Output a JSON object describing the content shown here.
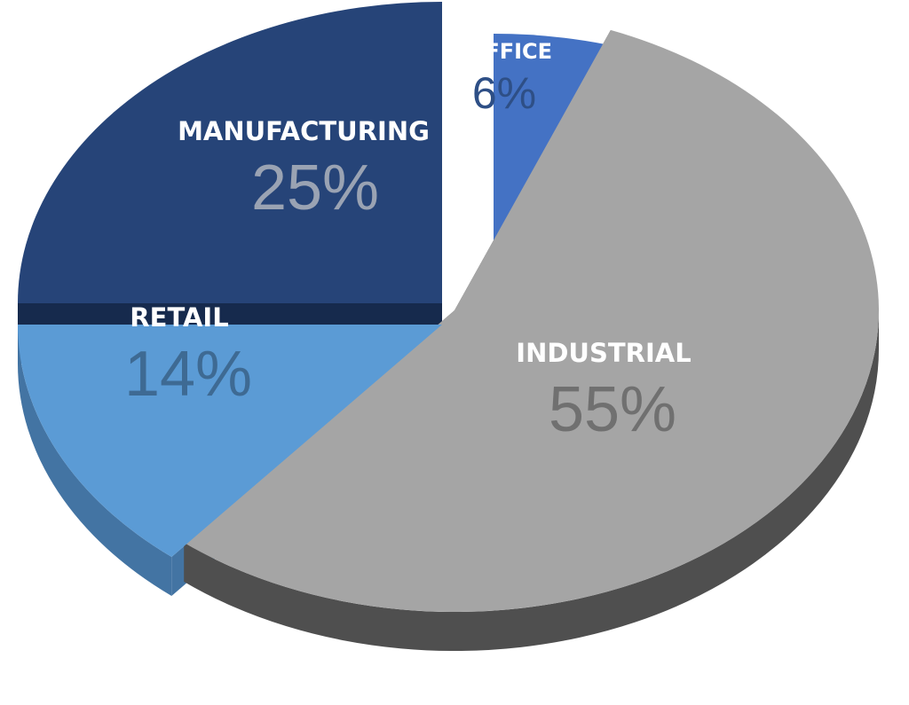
{
  "chart_data": {
    "type": "pie",
    "title": "",
    "legend": "none",
    "slices": [
      {
        "label": "OFFICE",
        "value": 6,
        "value_label": "6%",
        "color": "#4472c4",
        "side_color": "#365c9e",
        "pct_color": "#2e4f86"
      },
      {
        "label": "INDUSTRIAL",
        "value": 55,
        "value_label": "55%",
        "color": "#a5a5a5",
        "side_color": "#4f4f4f",
        "pct_color": "#707070"
      },
      {
        "label": "RETAIL",
        "value": 14,
        "value_label": "14%",
        "color": "#5b9bd5",
        "side_color": "#4374a3",
        "pct_color": "#3e6a93"
      },
      {
        "label": "MANUFACTURING",
        "value": 25,
        "value_label": "25%",
        "color": "#264478",
        "side_color": "#162a4d",
        "pct_color": "#9aa3b3"
      }
    ]
  }
}
